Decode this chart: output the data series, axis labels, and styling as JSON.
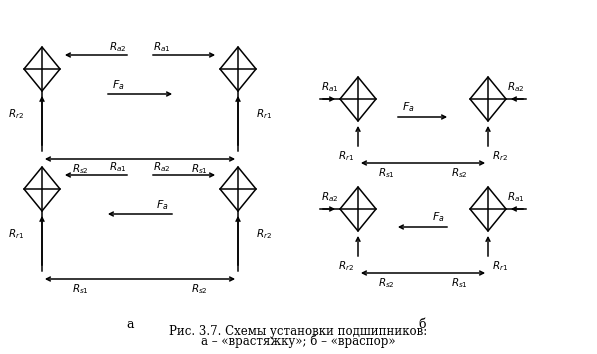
{
  "title": "Рис. 3.7. Схемы установки подшипников:",
  "subtitle": "а – «врастяжку»; б – «враспор»",
  "label_a": "а",
  "label_b": "б",
  "bg_color": "#ffffff",
  "line_color": "#000000"
}
